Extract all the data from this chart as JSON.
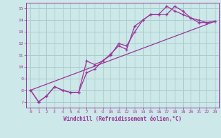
{
  "title": "",
  "xlabel": "Windchill (Refroidissement éolien,°C)",
  "ylabel": "",
  "bg_color": "#cce8e8",
  "grid_color": "#aacccc",
  "line_color": "#993399",
  "xlim": [
    -0.5,
    23.5
  ],
  "ylim": [
    6.5,
    15.5
  ],
  "xticks": [
    0,
    1,
    2,
    3,
    4,
    5,
    6,
    7,
    8,
    9,
    10,
    11,
    12,
    13,
    14,
    15,
    16,
    17,
    18,
    19,
    20,
    21,
    22,
    23
  ],
  "yticks": [
    7,
    8,
    9,
    10,
    11,
    12,
    13,
    14,
    15
  ],
  "line1_x": [
    0,
    1,
    2,
    3,
    4,
    5,
    6,
    7,
    8,
    9,
    10,
    11,
    12,
    13,
    14,
    15,
    16,
    17,
    18,
    19,
    20,
    21,
    22,
    23
  ],
  "line1_y": [
    8.0,
    7.0,
    7.5,
    8.3,
    8.0,
    7.8,
    7.8,
    9.5,
    9.8,
    10.5,
    11.0,
    12.0,
    11.8,
    13.0,
    14.0,
    14.5,
    14.5,
    14.5,
    15.2,
    14.8,
    14.2,
    13.8,
    13.8,
    13.9
  ],
  "line2_x": [
    0,
    1,
    2,
    3,
    4,
    5,
    6,
    7,
    8,
    9,
    10,
    11,
    12,
    13,
    14,
    15,
    16,
    17,
    18,
    19,
    20,
    21,
    22,
    23
  ],
  "line2_y": [
    8.0,
    7.0,
    7.5,
    8.3,
    8.0,
    7.8,
    7.8,
    10.5,
    10.2,
    10.5,
    11.1,
    11.8,
    11.5,
    13.5,
    14.0,
    14.5,
    14.5,
    15.2,
    14.8,
    14.5,
    14.2,
    14.0,
    13.8,
    13.9
  ],
  "line3_x": [
    0,
    23
  ],
  "line3_y": [
    8.0,
    13.9
  ],
  "xlabel_fontsize": 5.5,
  "tick_fontsize": 4.5
}
